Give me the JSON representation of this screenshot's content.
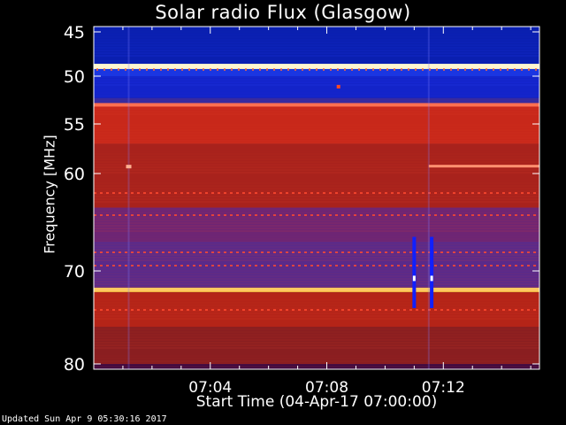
{
  "chart_data": {
    "type": "heatmap",
    "title": "Solar radio Flux (Glasgow)",
    "xlabel": "Start Time (04-Apr-17 07:00:00)",
    "ylabel": "Frequency [MHz]",
    "x_ticks": [
      "07:04",
      "07:08",
      "07:12"
    ],
    "x_tick_minutes": [
      4,
      8,
      12
    ],
    "x_range_minutes": [
      0,
      15.3
    ],
    "y_ticks": [
      45,
      50,
      55,
      60,
      70,
      80
    ],
    "y_range_mhz": [
      45,
      80
    ],
    "y_scale": "nonlinear (upward compressed at low frequency)",
    "bands": [
      {
        "freq_from": 44.3,
        "freq_to": 48.6,
        "color": "#0a1fb0"
      },
      {
        "freq_from": 48.6,
        "freq_to": 49.2,
        "color": "#f7f2c8"
      },
      {
        "freq_from": 49.2,
        "freq_to": 50.0,
        "color": "#1a36e0"
      },
      {
        "freq_from": 50.0,
        "freq_to": 52.3,
        "color": "#1324c9"
      },
      {
        "freq_from": 52.3,
        "freq_to": 53.0,
        "color": "#3a2a9a"
      },
      {
        "freq_from": 53.0,
        "freq_to": 57.0,
        "color": "#c8281a"
      },
      {
        "freq_from": 57.0,
        "freq_to": 63.5,
        "color": "#a8221c"
      },
      {
        "freq_from": 63.5,
        "freq_to": 67.0,
        "color": "#6e2574"
      },
      {
        "freq_from": 67.0,
        "freq_to": 71.8,
        "color": "#5a2a8a"
      },
      {
        "freq_from": 71.8,
        "freq_to": 72.3,
        "color": "#f0b040"
      },
      {
        "freq_from": 72.3,
        "freq_to": 76.0,
        "color": "#b42418"
      },
      {
        "freq_from": 76.0,
        "freq_to": 80.0,
        "color": "#8a1e20"
      }
    ],
    "bright_lines_mhz": [
      48.9,
      53.0,
      72.0
    ],
    "events": [
      {
        "type": "blue_gap",
        "minute": 11.0,
        "freq_from": 66.5,
        "freq_to": 74.0
      },
      {
        "type": "blue_gap",
        "minute": 11.6,
        "freq_from": 66.5,
        "freq_to": 74.0
      },
      {
        "type": "vertical_change",
        "minute": 1.2
      },
      {
        "type": "vertical_change",
        "minute": 11.5
      }
    ],
    "colors": {
      "blue": "#0a1fb0",
      "red": "#b42418",
      "yellow": "#f7f2c8"
    }
  },
  "footer": "Updated Sun Apr  9 05:30:16 2017"
}
